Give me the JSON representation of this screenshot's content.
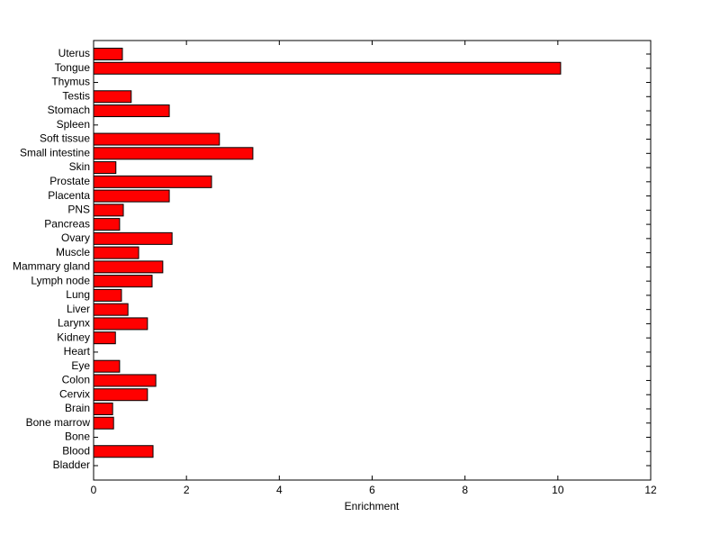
{
  "chart_data": {
    "type": "barh",
    "x_label": "Enrichment",
    "categories": [
      "Uterus",
      "Tongue",
      "Thymus",
      "Testis",
      "Stomach",
      "Spleen",
      "Soft tissue",
      "Small intestine",
      "Skin",
      "Prostate",
      "Placenta",
      "PNS",
      "Pancreas",
      "Ovary",
      "Muscle",
      "Mammary gland",
      "Lymph node",
      "Lung",
      "Liver",
      "Larynx",
      "Kidney",
      "Heart",
      "Eye",
      "Colon",
      "Cervix",
      "Brain",
      "Bone marrow",
      "Bone",
      "Blood",
      "Bladder"
    ],
    "values": [
      0.62,
      10.06,
      0,
      0.81,
      1.63,
      0,
      2.71,
      3.43,
      0.48,
      2.54,
      1.63,
      0.64,
      0.56,
      1.69,
      0.97,
      1.49,
      1.26,
      0.6,
      0.74,
      1.16,
      0.47,
      0,
      0.56,
      1.34,
      1.16,
      0.41,
      0.43,
      0,
      1.28,
      0
    ],
    "color": "#ff0000",
    "xlim": [
      0,
      12
    ],
    "xticks": [
      0,
      2,
      4,
      6,
      8,
      10,
      12
    ],
    "grid": false
  }
}
